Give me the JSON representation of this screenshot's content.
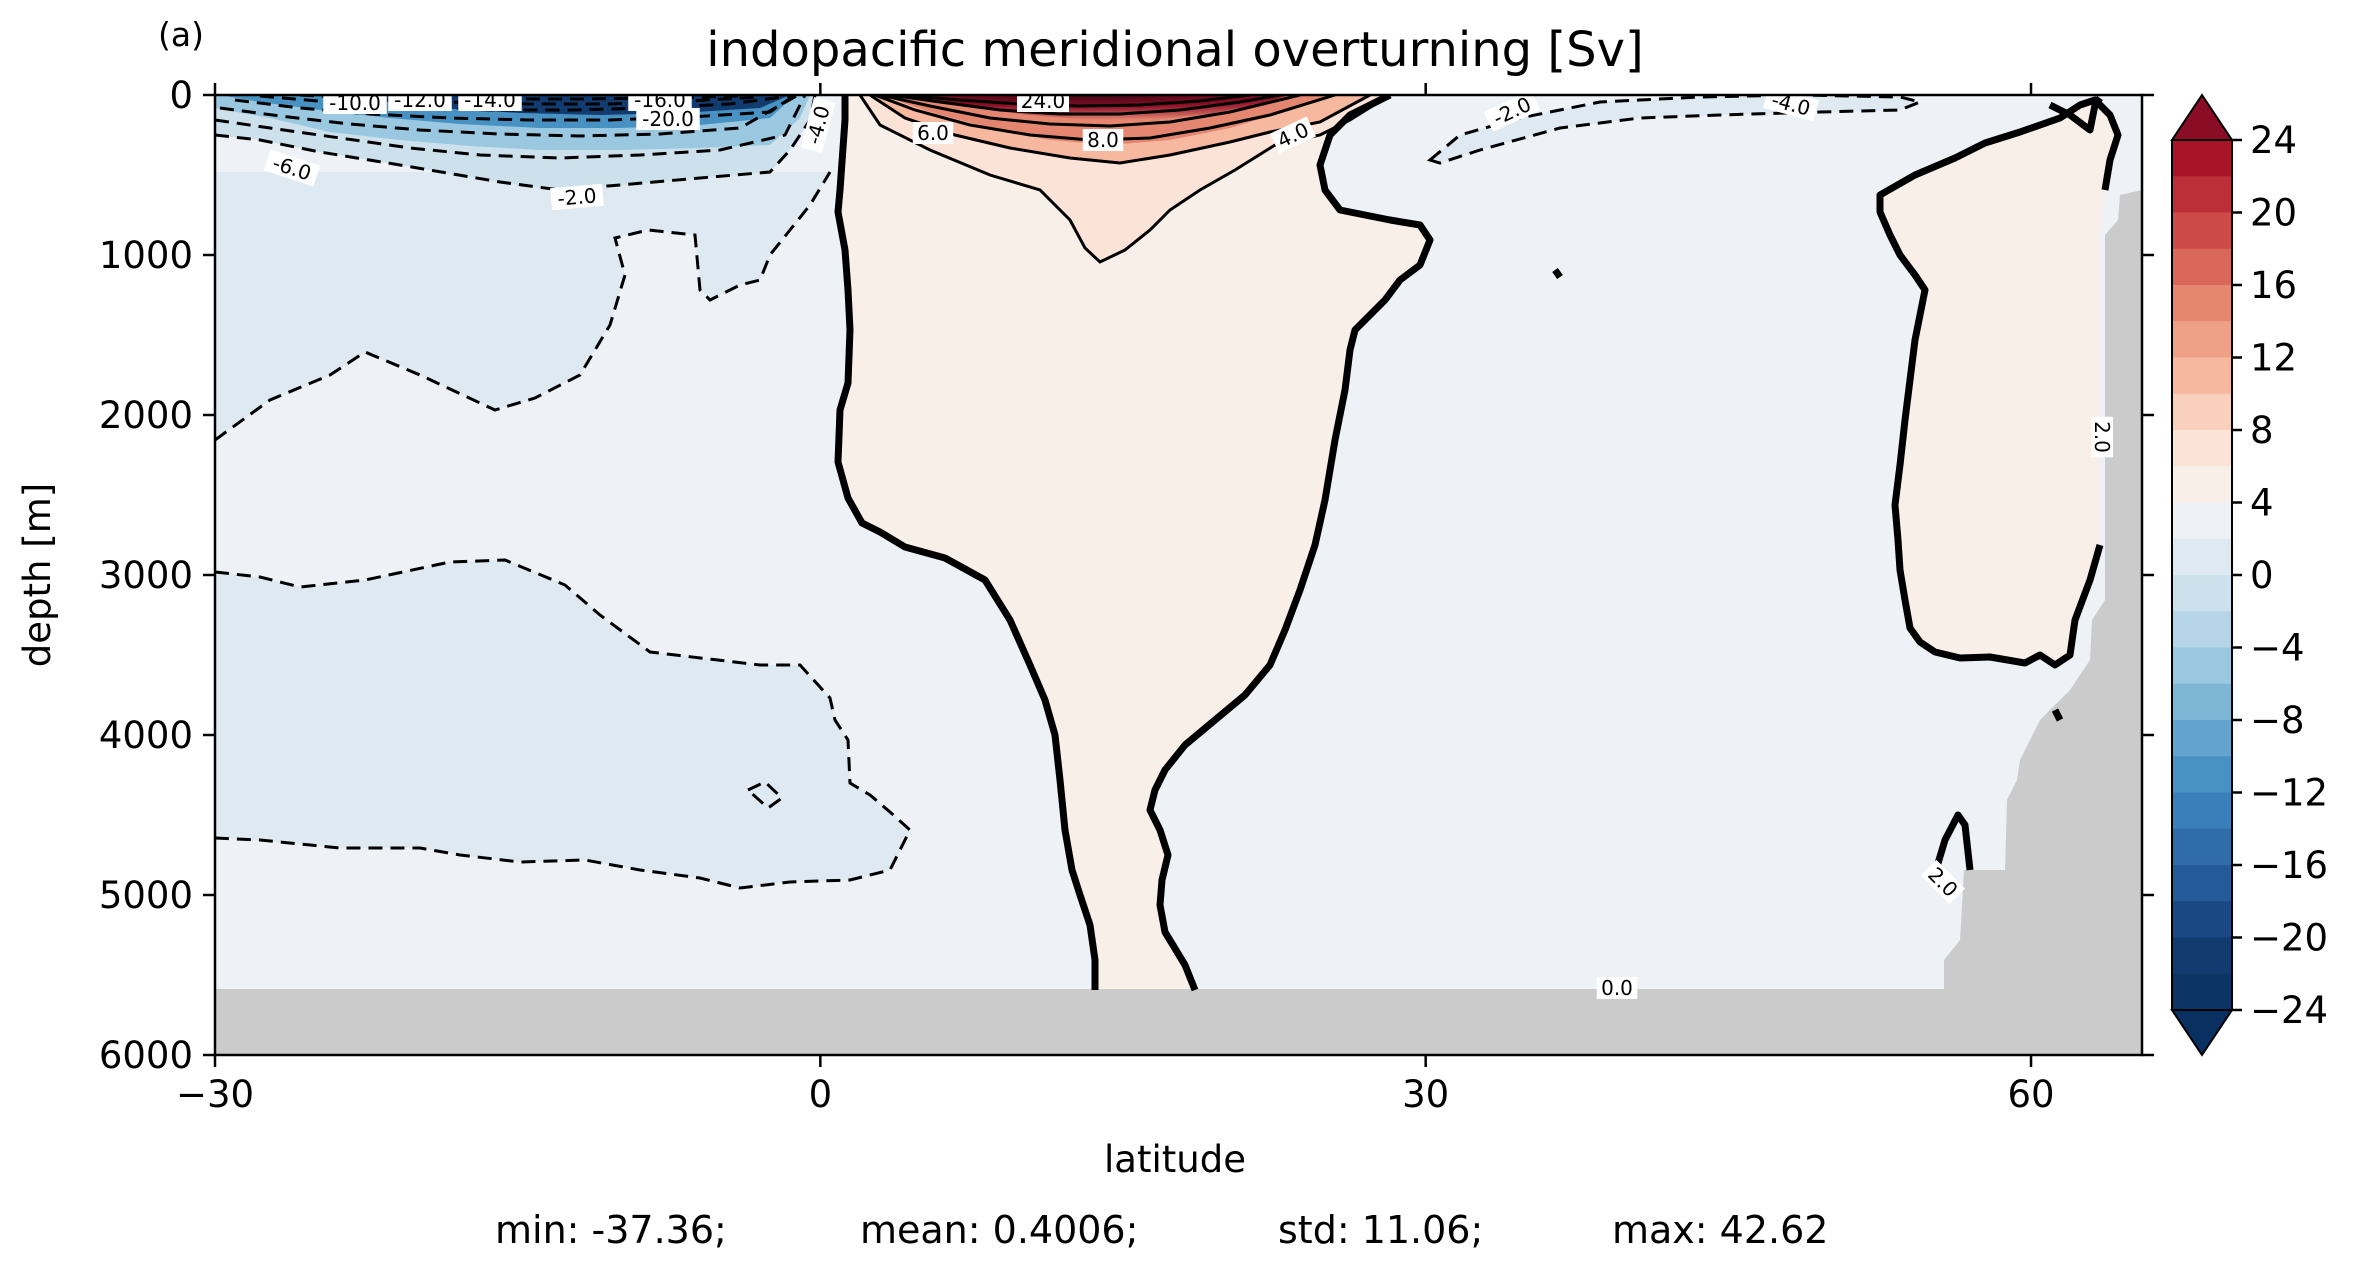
{
  "panel_label": "(a)",
  "stats": [
    "min: -37.36;",
    "mean: 0.4006;",
    "std: 11.06;",
    "max: 42.62"
  ],
  "chart_data": {
    "type": "heatmap",
    "plot_kind": "filled contour (meridional overturning streamfunction)",
    "title": "indopacific meridional overturning [Sv]",
    "xlabel": "latitude",
    "ylabel": "depth [m]",
    "xlim": [
      -30,
      65.5
    ],
    "ylim": [
      6000,
      0
    ],
    "xticks": [
      -30,
      0,
      30,
      60
    ],
    "xtick_labels": [
      "−30",
      "0",
      "30",
      "60"
    ],
    "yticks": [
      0,
      1000,
      2000,
      3000,
      4000,
      5000,
      6000
    ],
    "ytick_labels": [
      "0",
      "1000",
      "2000",
      "3000",
      "4000",
      "5000",
      "6000"
    ],
    "grid": false,
    "colorbar": {
      "cmap": "RdBu_r",
      "vmin": -24,
      "vmax": 24,
      "step": 2,
      "extend": "both",
      "ticks": [
        24,
        20,
        16,
        12,
        8,
        4,
        0,
        -4,
        -8,
        -12,
        -16,
        -20,
        -24
      ],
      "tick_labels": [
        "24",
        "20",
        "16",
        "12",
        "8",
        "4",
        "0",
        "−4",
        "−8",
        "−12",
        "−16",
        "−20",
        "−24"
      ],
      "colors": [
        "#a91428",
        "#bd2f38",
        "#cc4b49",
        "#d9675a",
        "#e48670",
        "#efa188",
        "#f6b99f",
        "#f9d0bc",
        "#fbe3d7",
        "#f8efe9",
        "#eef2f6",
        "#dee9f1",
        "#cde1ec",
        "#b6d5e7",
        "#9ac8e0",
        "#7eb7d6",
        "#62a4cd",
        "#4892c3",
        "#3a7fb9",
        "#2f6ca8",
        "#245a97",
        "#1a4884",
        "#123b70",
        "#0c3464"
      ],
      "over_color": "#8a0d25",
      "under_color": "#0a3061"
    },
    "land_mask_color": "#cbcbcb",
    "contour_labels": [
      "-10.0",
      "-12.0",
      "-14.0",
      "-16.0",
      "-20.0",
      "-6.0",
      "-2.0",
      "-4.0",
      "24.0",
      "6.0",
      "8.0",
      "4.0",
      "-2.0",
      "-4.0",
      "2.0",
      "2.0",
      "0.0"
    ]
  }
}
